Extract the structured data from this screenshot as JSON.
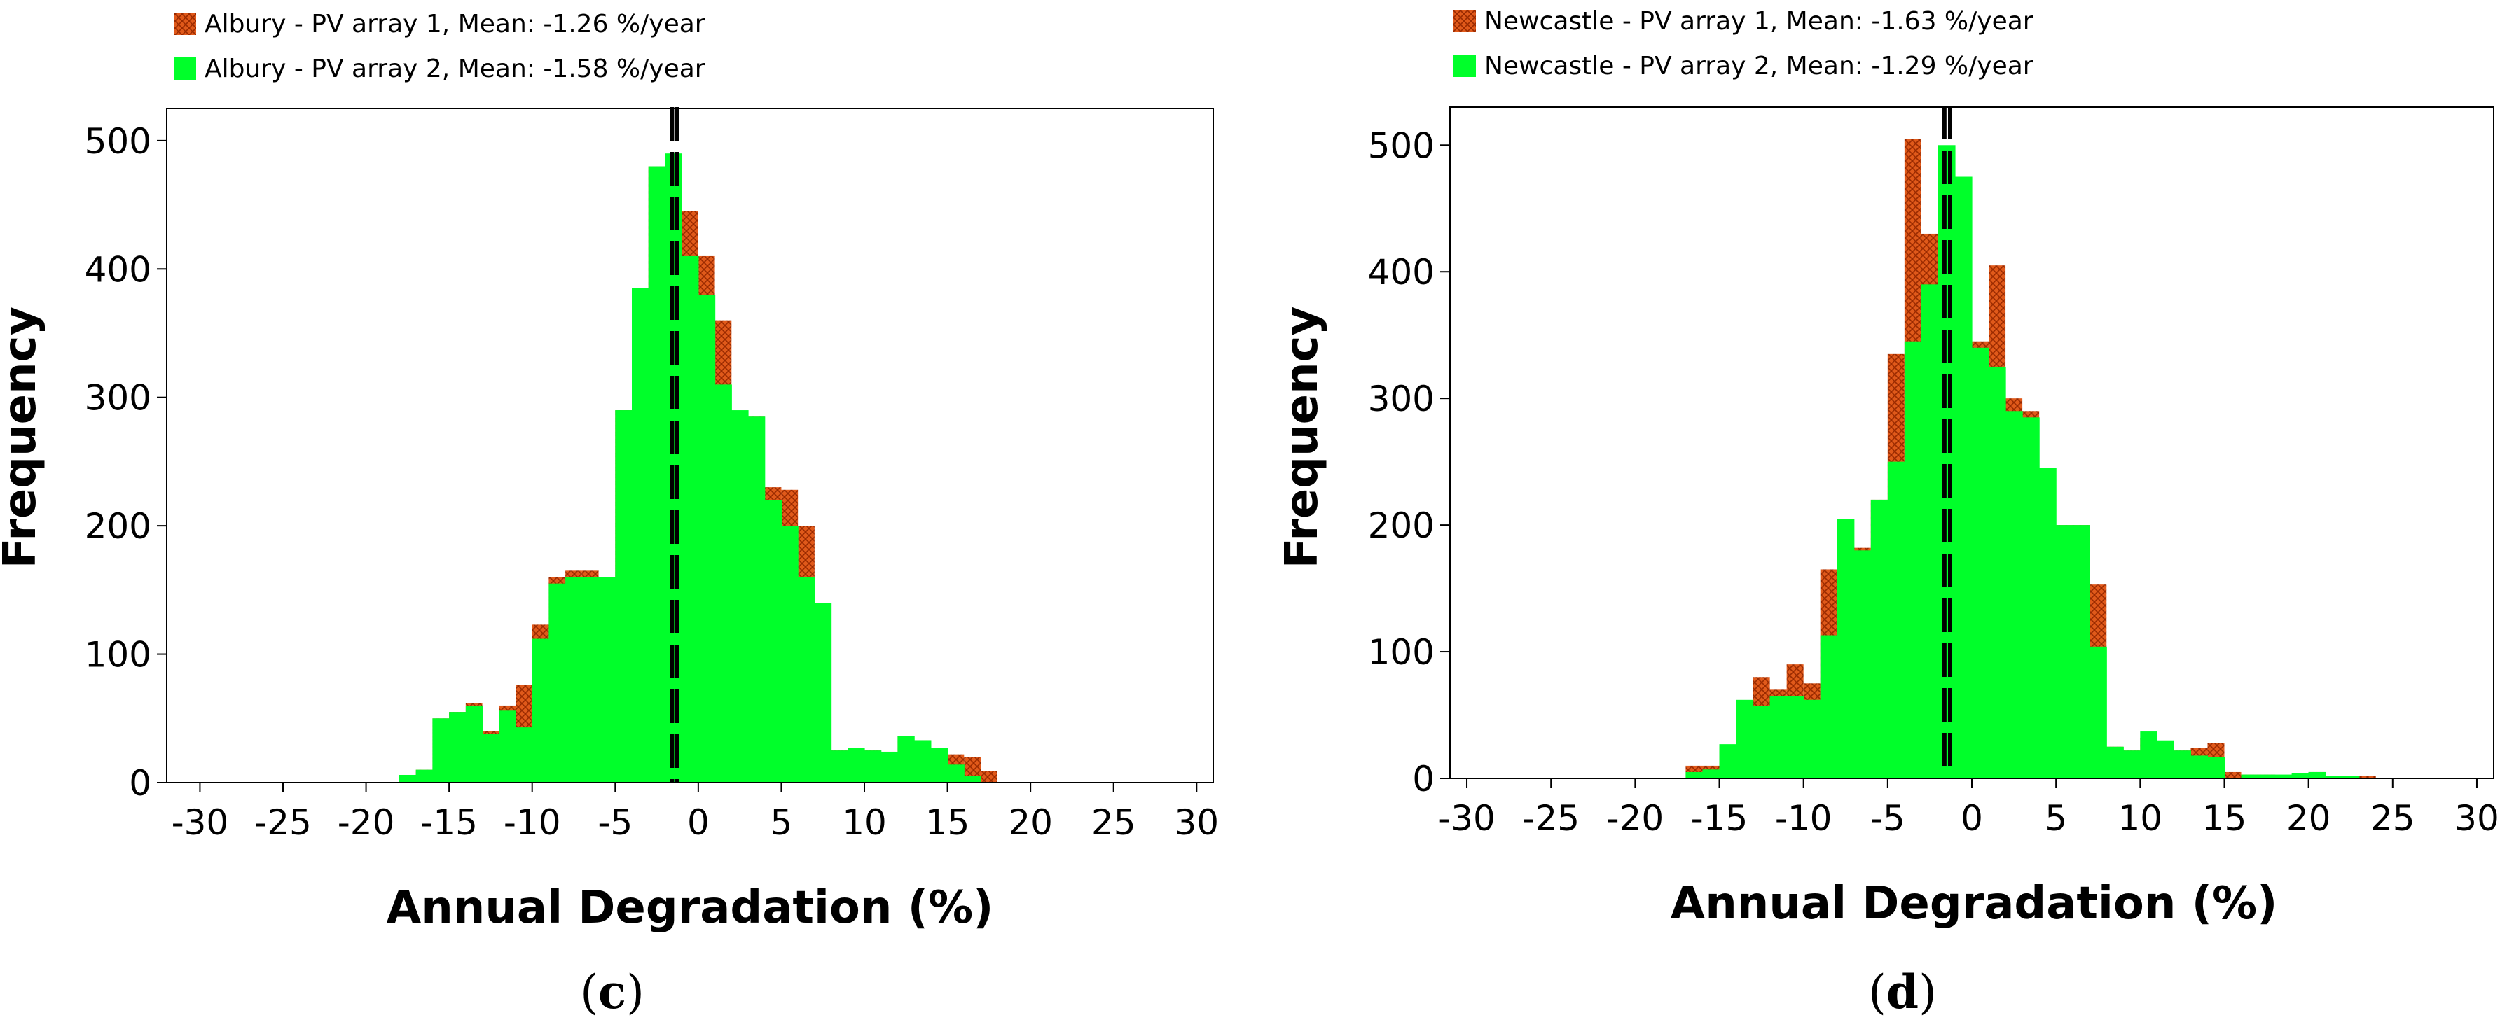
{
  "colors": {
    "array1": "#e0591a",
    "array1_hatch": "#9a2a00",
    "array2": "#00ff2a",
    "mean_line": "#000000",
    "axis": "#000000"
  },
  "chart_data": [
    {
      "type": "bar",
      "panel_label": "(c)",
      "panel_letter": "c",
      "location": "Albury",
      "xlabel": "Annual Degradation (%)",
      "ylabel": "Frequency",
      "xlim": [
        -32,
        31
      ],
      "ylim": [
        0,
        525
      ],
      "xticks": [
        -30,
        -25,
        -20,
        -15,
        -10,
        -5,
        0,
        5,
        10,
        15,
        20,
        25,
        30
      ],
      "yticks": [
        0,
        100,
        200,
        300,
        400,
        500
      ],
      "bin_width": 1,
      "bin_starts": [
        -19,
        -18,
        -17,
        -16,
        -15,
        -14,
        -13,
        -12,
        -11,
        -10,
        -9,
        -8,
        -7,
        -6,
        -5,
        -4,
        -3,
        -2,
        -1,
        0,
        1,
        2,
        3,
        4,
        5,
        6,
        7,
        8,
        9,
        10,
        11,
        12,
        13,
        14,
        15,
        16,
        17,
        18
      ],
      "series": [
        {
          "name": "Albury - PV array 1",
          "legend": "Albury - PV array 1,  Mean: -1.26 %/year",
          "mean": -1.26,
          "values": [
            0,
            6,
            10,
            50,
            55,
            62,
            40,
            60,
            76,
            123,
            160,
            165,
            165,
            160,
            290,
            385,
            480,
            470,
            445,
            410,
            360,
            288,
            285,
            230,
            228,
            200,
            140,
            25,
            27,
            25,
            24,
            36,
            33,
            27,
            22,
            20,
            9,
            0
          ]
        },
        {
          "name": "Albury - PV array 2",
          "legend": "Albury - PV array 2,  Mean: -1.58 %/year",
          "mean": -1.58,
          "values": [
            0,
            6,
            10,
            50,
            55,
            60,
            38,
            56,
            43,
            112,
            155,
            160,
            160,
            160,
            290,
            385,
            480,
            490,
            410,
            380,
            310,
            290,
            285,
            220,
            200,
            160,
            140,
            25,
            27,
            25,
            24,
            36,
            33,
            27,
            14,
            5,
            0,
            0
          ]
        }
      ]
    },
    {
      "type": "bar",
      "panel_label": "(d)",
      "panel_letter": "d",
      "location": "Newcastle",
      "xlabel": "Annual Degradation (%)",
      "ylabel": "Frequency",
      "xlim": [
        -31,
        31
      ],
      "ylim": [
        0,
        530
      ],
      "xticks": [
        -30,
        -25,
        -20,
        -15,
        -10,
        -5,
        0,
        5,
        10,
        15,
        20,
        25,
        30
      ],
      "yticks": [
        0,
        100,
        200,
        300,
        400,
        500
      ],
      "bin_width": 1,
      "bin_starts": [
        -18,
        -17,
        -16,
        -15,
        -14,
        -13,
        -12,
        -11,
        -10,
        -9,
        -8,
        -7,
        -6,
        -5,
        -4,
        -3,
        -2,
        -1,
        0,
        1,
        2,
        3,
        4,
        5,
        6,
        7,
        8,
        9,
        10,
        11,
        12,
        13,
        14,
        15,
        16,
        17,
        18,
        19,
        20,
        21,
        22,
        23
      ],
      "series": [
        {
          "name": "Newcastle - PV array 1",
          "legend": "Newcastle - PV array 1,  Mean: -1.63 %/year",
          "mean": -1.63,
          "values": [
            0,
            10,
            10,
            25,
            60,
            80,
            70,
            90,
            75,
            165,
            205,
            182,
            220,
            335,
            505,
            430,
            470,
            460,
            345,
            405,
            300,
            290,
            245,
            200,
            200,
            153,
            25,
            22,
            32,
            27,
            22,
            24,
            28,
            5,
            3,
            3,
            2,
            3,
            5,
            2,
            2,
            2
          ]
        },
        {
          "name": "Newcastle - PV array 2",
          "legend": "Newcastle - PV array 2,  Mean: -1.29 %/year",
          "mean": -1.29,
          "values": [
            0,
            5,
            7,
            27,
            62,
            57,
            65,
            65,
            62,
            113,
            205,
            180,
            220,
            250,
            345,
            390,
            500,
            475,
            340,
            325,
            290,
            285,
            245,
            200,
            200,
            104,
            25,
            22,
            37,
            30,
            22,
            18,
            17,
            0,
            3,
            3,
            3,
            4,
            5,
            2,
            2,
            0
          ]
        }
      ]
    }
  ]
}
